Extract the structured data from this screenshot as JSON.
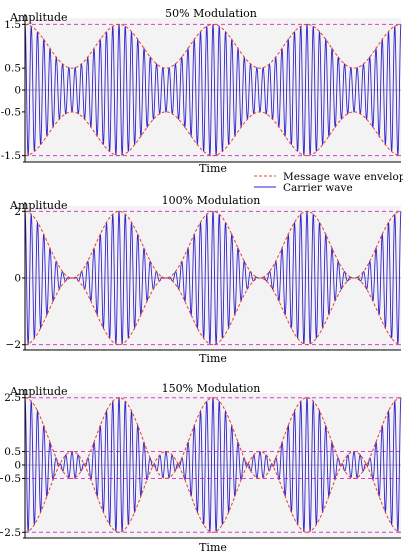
{
  "legend": {
    "envelope_label": "Message wave envelope",
    "carrier_label": "Carrier wave"
  },
  "colors": {
    "carrier": "#3322cc",
    "envelope": "#e8412b",
    "guide": "#d63ed6",
    "axis": "#000000",
    "background": "#f3f3f3"
  },
  "chart_data": [
    {
      "type": "line",
      "title": "50% Modulation",
      "ylabel": "Amplitude",
      "xlabel": "Time",
      "modulation_index": 0.5,
      "ylim": [
        -1.6,
        1.6
      ],
      "yticks": [
        1.5,
        0.5,
        0,
        -0.5,
        -1.5
      ],
      "ytick_labels": [
        "1.5",
        "0.5",
        "0",
        "-0.5",
        "-1.5"
      ],
      "guide_lines": [
        1.5,
        -1.5
      ],
      "grid": false,
      "message_cycles": 4,
      "carrier_cycles": 60,
      "series": [
        {
          "name": "Message wave envelope",
          "formula": "±(1 + m·cos(2π·f_m·t))"
        },
        {
          "name": "Carrier wave",
          "formula": "(1 + m·cos(2π·f_m·t))·cos(2π·f_c·t)"
        }
      ]
    },
    {
      "type": "line",
      "title": "100% Modulation",
      "ylabel": "Amplitude",
      "xlabel": "Time",
      "modulation_index": 1.0,
      "ylim": [
        -2.1,
        2.1
      ],
      "yticks": [
        2,
        0,
        -2
      ],
      "ytick_labels": [
        "2",
        "0",
        "−2"
      ],
      "guide_lines": [
        2,
        -2
      ],
      "grid": false,
      "message_cycles": 4,
      "carrier_cycles": 60,
      "series": [
        {
          "name": "Message wave envelope",
          "formula": "±(1 + m·cos(2π·f_m·t))"
        },
        {
          "name": "Carrier wave",
          "formula": "(1 + m·cos(2π·f_m·t))·cos(2π·f_c·t)"
        }
      ]
    },
    {
      "type": "line",
      "title": "150% Modulation",
      "ylabel": "Amplitude",
      "xlabel": "Time",
      "modulation_index": 1.5,
      "ylim": [
        -2.6,
        2.6
      ],
      "yticks": [
        2.5,
        0.5,
        0,
        -0.5,
        -2.5
      ],
      "ytick_labels": [
        "2.5",
        "0.5",
        "0",
        "−0.5",
        "−2.5"
      ],
      "guide_lines": [
        2.5,
        -2.5,
        0.5,
        -0.5
      ],
      "grid": false,
      "message_cycles": 4,
      "carrier_cycles": 60,
      "series": [
        {
          "name": "Message wave envelope",
          "formula": "±(1 + m·cos(2π·f_m·t))"
        },
        {
          "name": "Carrier wave",
          "formula": "(1 + m·cos(2π·f_m·t))·cos(2π·f_c·t)"
        }
      ]
    }
  ]
}
